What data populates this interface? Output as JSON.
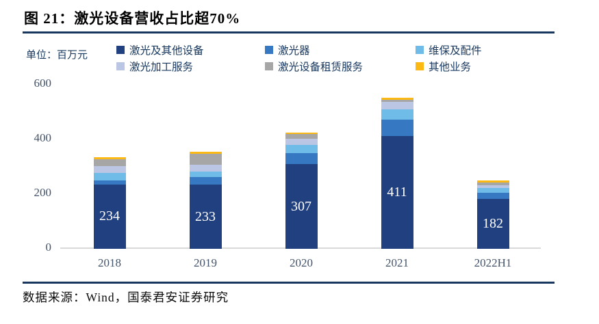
{
  "header": {
    "title": "图 21：激光设备营收占比超70%"
  },
  "unit_label": "单位：百万元",
  "legend": {
    "items": [
      {
        "label": "激光及其他设备"
      },
      {
        "label": "激光器"
      },
      {
        "label": "维保及配件"
      },
      {
        "label": "激光加工服务"
      },
      {
        "label": "激光设备租赁服务"
      },
      {
        "label": "其他业务"
      }
    ]
  },
  "footer": {
    "source": "数据来源：Wind，国泰君安证券研究"
  },
  "colors": {
    "accent_navy": "#17375E",
    "axis_text": "#44546A",
    "axis_line": "#D9D9D9"
  },
  "chart_data": {
    "type": "bar",
    "stacked": true,
    "title": "激光设备营收占比超70%",
    "unit": "百万元",
    "categories": [
      "2018",
      "2019",
      "2020",
      "2021",
      "2022H1"
    ],
    "series": [
      {
        "name": "激光及其他设备",
        "color": "#214080",
        "values": [
          234,
          233,
          307,
          411,
          182
        ]
      },
      {
        "name": "激光器",
        "color": "#3778C2",
        "values": [
          15,
          27,
          42,
          58,
          21
        ]
      },
      {
        "name": "维保及配件",
        "color": "#70BCE8",
        "values": [
          27,
          22,
          28,
          39,
          19
        ]
      },
      {
        "name": "激光加工服务",
        "color": "#BAC6E4",
        "values": [
          25,
          23,
          22,
          25,
          10
        ]
      },
      {
        "name": "激光设备租赁服务",
        "color": "#A6A6A6",
        "values": [
          25,
          41,
          18,
          9,
          8
        ]
      },
      {
        "name": "其他业务",
        "color": "#FCB813",
        "values": [
          8,
          7,
          6,
          8,
          8
        ]
      }
    ],
    "bar_labels": [
      "234",
      "233",
      "307",
      "411",
      "182"
    ],
    "labeled_series": "激光及其他设备",
    "yticks": [
      "600",
      "400",
      "200",
      "0"
    ],
    "ylim": [
      0,
      600
    ],
    "grid": false,
    "legend_position": "top"
  }
}
